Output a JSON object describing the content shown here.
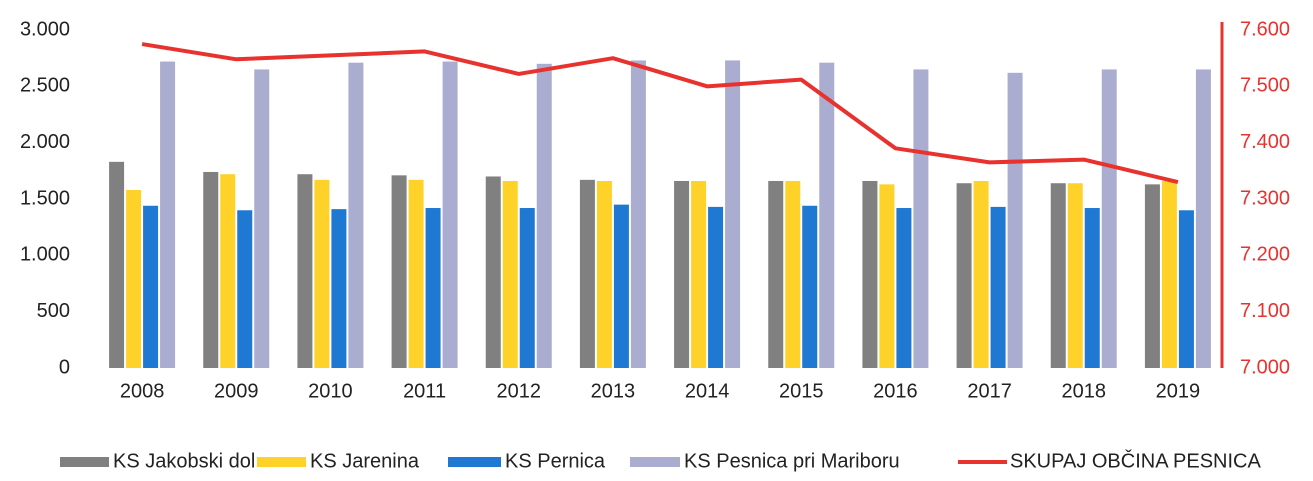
{
  "chart_data": {
    "type": "bar-line",
    "categories": [
      "2008",
      "2009",
      "2010",
      "2011",
      "2012",
      "2013",
      "2014",
      "2015",
      "2016",
      "2017",
      "2018",
      "2019"
    ],
    "series": [
      {
        "name": "KS Jakobski dol",
        "color": "#808080",
        "values": [
          1830,
          1740,
          1720,
          1710,
          1700,
          1670,
          1660,
          1660,
          1660,
          1640,
          1640,
          1630
        ]
      },
      {
        "name": "KS Jarenina",
        "color": "#ffd22a",
        "values": [
          1580,
          1720,
          1670,
          1670,
          1660,
          1660,
          1660,
          1660,
          1630,
          1660,
          1640,
          1660
        ]
      },
      {
        "name": "KS Pernica",
        "color": "#1f78d1",
        "values": [
          1440,
          1400,
          1410,
          1420,
          1420,
          1450,
          1430,
          1440,
          1420,
          1430,
          1420,
          1400
        ]
      },
      {
        "name": "KS Pesnica pri Mariboru",
        "color": "#aaadd0",
        "values": [
          2720,
          2650,
          2710,
          2720,
          2700,
          2730,
          2730,
          2710,
          2650,
          2620,
          2650,
          2650
        ]
      },
      {
        "name": "SKUPAJ OBČINA PESNICA",
        "color": "#e8322e",
        "type": "line",
        "axis": "y2",
        "values": [
          7575,
          7548,
          7555,
          7562,
          7522,
          7550,
          7500,
          7512,
          7390,
          7365,
          7370,
          7330
        ]
      }
    ],
    "ylim": [
      0,
      3000
    ],
    "yticks": [
      0,
      {
        "value": 500,
        "label": "500"
      },
      {
        "value": 1000,
        "label": "1.000"
      },
      {
        "value": 1500,
        "label": "1.500"
      },
      {
        "value": 2000,
        "label": "2.000"
      },
      {
        "value": 2500,
        "label": "2.500"
      },
      {
        "value": 3000,
        "label": "3.000"
      }
    ],
    "y2lim": [
      7000,
      7600
    ],
    "y2ticks": [
      {
        "value": 7000,
        "label": "7.000"
      },
      {
        "value": 7100,
        "label": "7.100"
      },
      {
        "value": 7200,
        "label": "7.200"
      },
      {
        "value": 7300,
        "label": "7.300"
      },
      {
        "value": 7400,
        "label": "7.400"
      },
      {
        "value": 7500,
        "label": "7.500"
      },
      {
        "value": 7600,
        "label": "7.600"
      }
    ],
    "y2color": "#e8322e",
    "legend": "bottom"
  }
}
